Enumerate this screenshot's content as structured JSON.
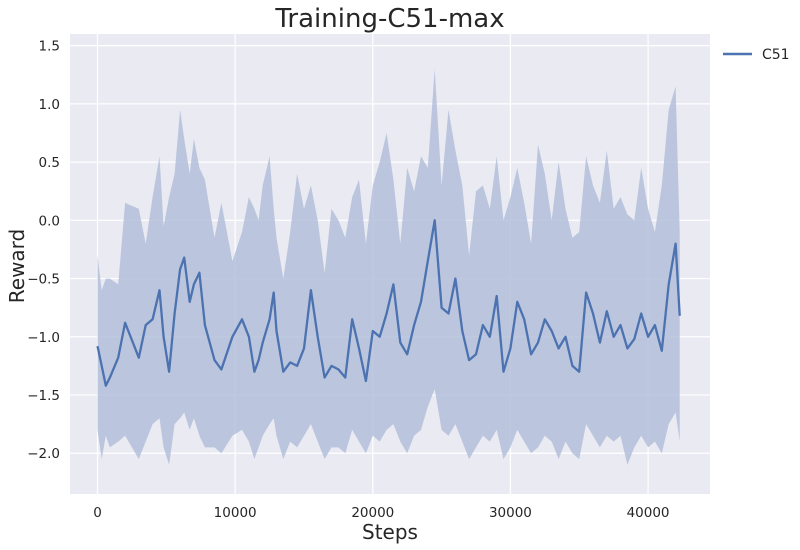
{
  "chart_data": {
    "type": "line",
    "title": "Training-C51-max",
    "xlabel": "Steps",
    "ylabel": "Reward",
    "xlim": [
      -2000,
      44500
    ],
    "ylim": [
      -2.35,
      1.6
    ],
    "xticks": [
      0,
      10000,
      20000,
      30000,
      40000
    ],
    "yticks": [
      -2.0,
      -1.5,
      -1.0,
      -0.5,
      0.0,
      0.5,
      1.0,
      1.5
    ],
    "xtick_labels": [
      "0",
      "10000",
      "20000",
      "30000",
      "40000"
    ],
    "ytick_labels": [
      "−2.0",
      "−1.5",
      "−1.0",
      "−0.5",
      "0.0",
      "0.5",
      "1.0",
      "1.5"
    ],
    "grid": true,
    "legend": {
      "position": "outside-top-right",
      "entries": [
        "C51"
      ]
    },
    "colors": {
      "line": "#4c72b0",
      "band": "#b3c0da",
      "background": "#eaeaf2",
      "grid": "#ffffff"
    },
    "series": [
      {
        "name": "C51",
        "x": [
          0,
          300,
          600,
          900,
          1500,
          2000,
          3000,
          3500,
          4000,
          4500,
          4800,
          5200,
          5600,
          6000,
          6300,
          6700,
          7000,
          7400,
          7800,
          8500,
          9000,
          9800,
          10500,
          11000,
          11400,
          11700,
          12000,
          12500,
          12800,
          13000,
          13500,
          14000,
          14500,
          15000,
          15500,
          16000,
          16500,
          17000,
          17500,
          18000,
          18500,
          19000,
          19500,
          20000,
          20500,
          21000,
          21500,
          22000,
          22500,
          23000,
          23500,
          24000,
          24500,
          25000,
          25500,
          26000,
          26500,
          27000,
          27500,
          28000,
          28500,
          29000,
          29500,
          30000,
          30500,
          31000,
          31500,
          32000,
          32500,
          33000,
          33500,
          34000,
          34500,
          35000,
          35500,
          36000,
          36500,
          37000,
          37500,
          38000,
          38500,
          39000,
          39500,
          40000,
          40500,
          41000,
          41500,
          42000,
          42300
        ],
        "mean": [
          -1.08,
          -1.25,
          -1.42,
          -1.35,
          -1.18,
          -0.88,
          -1.18,
          -0.9,
          -0.85,
          -0.6,
          -1.0,
          -1.3,
          -0.8,
          -0.42,
          -0.32,
          -0.7,
          -0.55,
          -0.45,
          -0.9,
          -1.2,
          -1.28,
          -1.0,
          -0.85,
          -1.0,
          -1.3,
          -1.2,
          -1.05,
          -0.85,
          -0.62,
          -0.95,
          -1.3,
          -1.22,
          -1.25,
          -1.1,
          -0.6,
          -1.0,
          -1.35,
          -1.25,
          -1.28,
          -1.35,
          -0.85,
          -1.1,
          -1.38,
          -0.95,
          -1.0,
          -0.8,
          -0.55,
          -1.05,
          -1.15,
          -0.9,
          -0.7,
          -0.35,
          0.0,
          -0.75,
          -0.8,
          -0.5,
          -0.95,
          -1.2,
          -1.15,
          -0.9,
          -1.0,
          -0.65,
          -1.3,
          -1.1,
          -0.7,
          -0.85,
          -1.15,
          -1.05,
          -0.85,
          -0.95,
          -1.1,
          -1.0,
          -1.25,
          -1.3,
          -0.62,
          -0.8,
          -1.05,
          -0.78,
          -1.0,
          -0.9,
          -1.1,
          -1.02,
          -0.8,
          -1.0,
          -0.9,
          -1.12,
          -0.55,
          -0.2,
          -0.82
        ],
        "upper": [
          -0.3,
          -0.6,
          -0.5,
          -0.5,
          -0.55,
          0.15,
          0.1,
          -0.2,
          0.2,
          0.55,
          -0.05,
          0.2,
          0.4,
          0.95,
          0.7,
          0.4,
          0.7,
          0.45,
          0.35,
          -0.15,
          0.15,
          -0.35,
          -0.1,
          0.2,
          0.1,
          0.0,
          0.3,
          0.55,
          0.1,
          -0.15,
          -0.5,
          -0.1,
          0.4,
          0.1,
          0.3,
          0.0,
          -0.45,
          0.1,
          0.0,
          -0.15,
          0.2,
          0.35,
          -0.2,
          0.3,
          0.5,
          0.75,
          0.35,
          -0.2,
          0.45,
          0.25,
          0.55,
          0.45,
          1.3,
          0.3,
          0.95,
          0.6,
          0.3,
          -0.3,
          0.25,
          0.3,
          0.1,
          0.55,
          0.0,
          0.2,
          0.45,
          0.15,
          -0.2,
          0.65,
          0.4,
          0.0,
          0.5,
          0.1,
          -0.15,
          -0.1,
          0.55,
          0.3,
          0.15,
          0.6,
          0.1,
          0.2,
          0.05,
          0.0,
          0.45,
          0.1,
          -0.1,
          0.3,
          0.95,
          1.15,
          -0.1
        ],
        "lower": [
          -1.8,
          -2.05,
          -1.85,
          -1.95,
          -1.9,
          -1.85,
          -2.05,
          -1.9,
          -1.75,
          -1.7,
          -1.95,
          -2.1,
          -1.75,
          -1.7,
          -1.65,
          -1.8,
          -1.7,
          -1.85,
          -1.95,
          -1.95,
          -2.0,
          -1.85,
          -1.8,
          -1.9,
          -2.05,
          -1.95,
          -1.85,
          -1.75,
          -1.7,
          -1.85,
          -2.05,
          -1.9,
          -1.95,
          -1.85,
          -1.75,
          -1.9,
          -2.05,
          -1.95,
          -1.95,
          -2.0,
          -1.8,
          -1.9,
          -2.0,
          -1.85,
          -1.9,
          -1.8,
          -1.75,
          -1.9,
          -2.0,
          -1.85,
          -1.8,
          -1.6,
          -1.45,
          -1.8,
          -1.85,
          -1.75,
          -1.9,
          -2.05,
          -1.95,
          -1.85,
          -1.9,
          -1.8,
          -2.05,
          -1.95,
          -1.8,
          -1.9,
          -2.0,
          -1.95,
          -1.85,
          -1.9,
          -2.05,
          -1.9,
          -2.0,
          -2.05,
          -1.75,
          -1.85,
          -1.95,
          -1.85,
          -1.9,
          -1.85,
          -2.1,
          -1.95,
          -1.85,
          -1.95,
          -1.9,
          -2.0,
          -1.75,
          -1.65,
          -1.9
        ]
      }
    ]
  }
}
